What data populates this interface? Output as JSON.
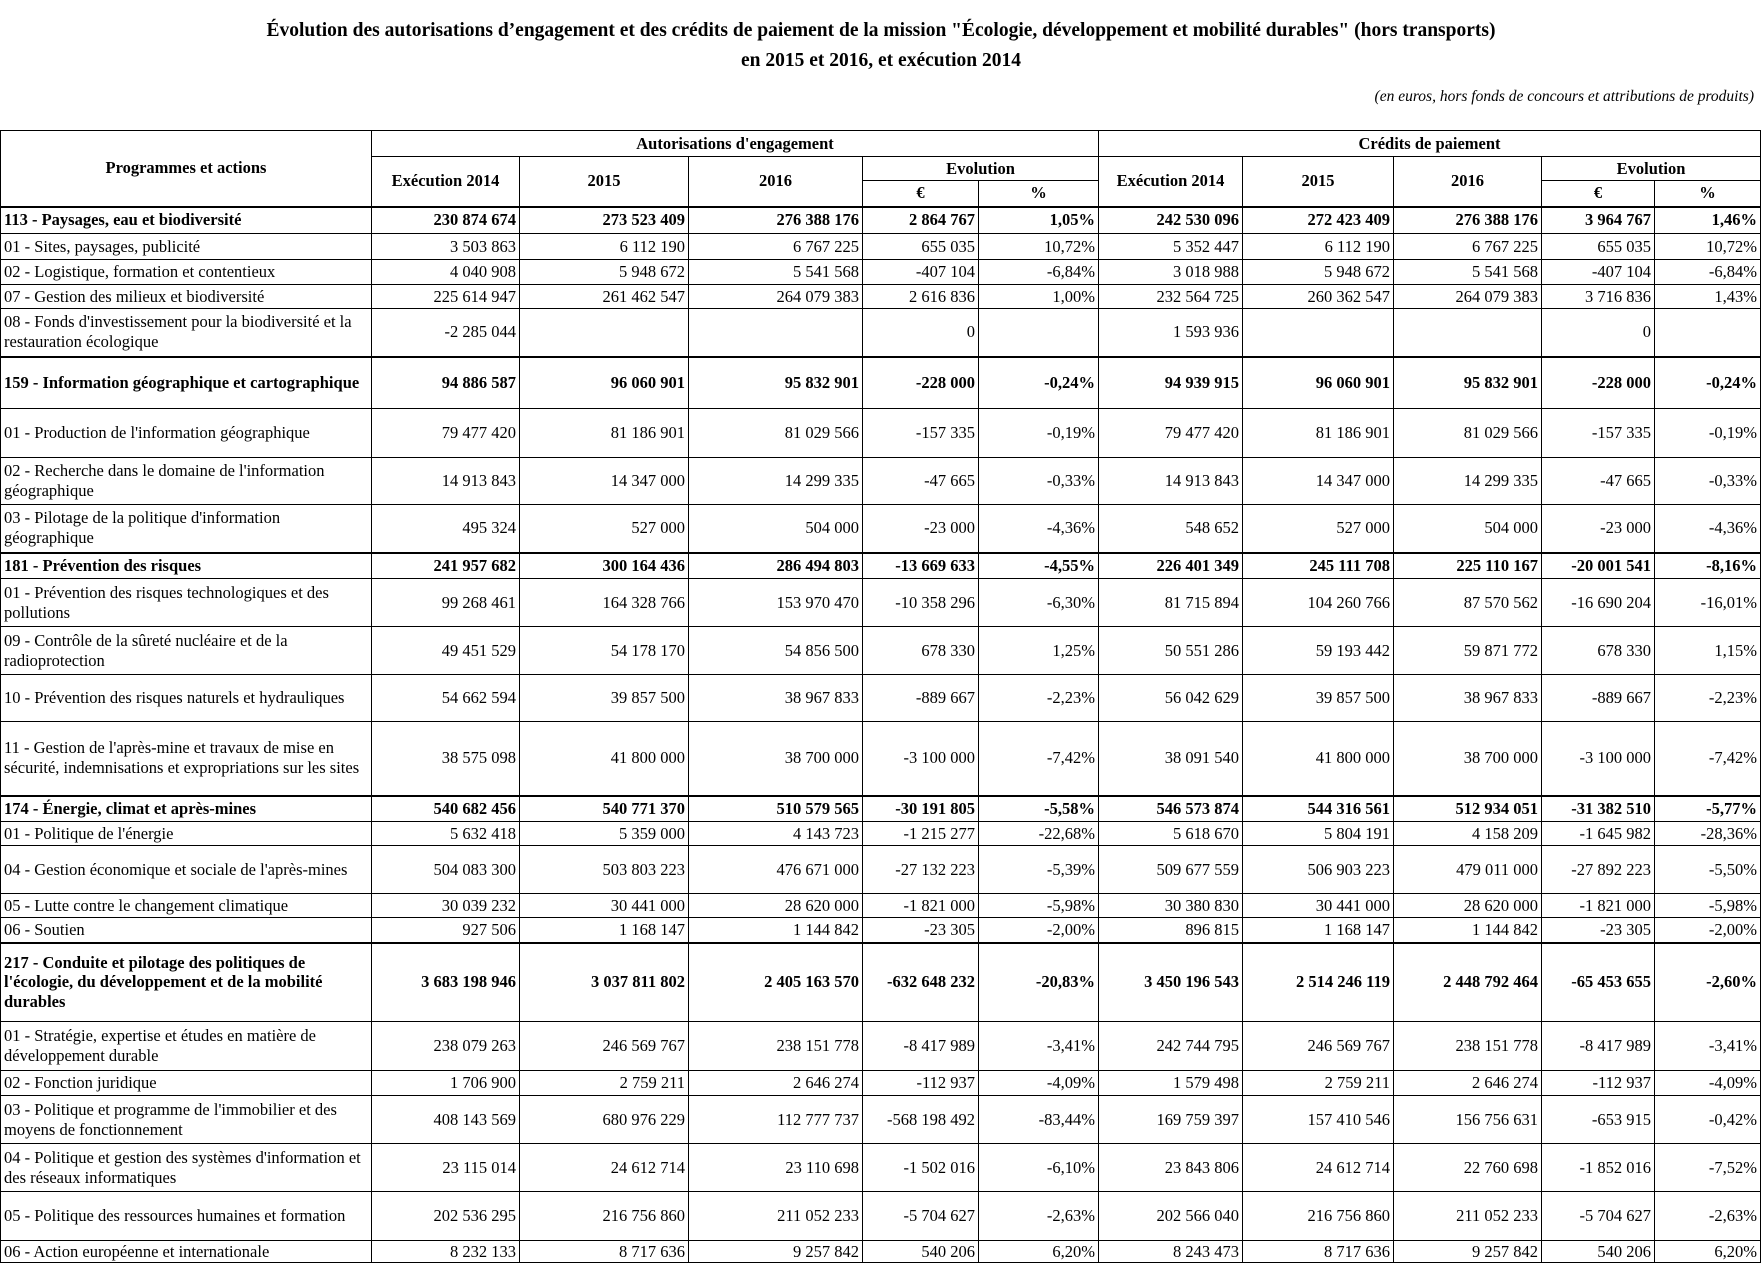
{
  "header": {
    "title_lines": [
      "Évolution des autorisations d’engagement et des crédits de paiement de la mission \"Écologie, développement et mobilité durables\" (hors transports)",
      "en 2015 et 2016, et exécution 2014"
    ],
    "note": "(en euros, hors fonds de concours et attributions de produits)"
  },
  "table": {
    "row_header": "Programmes et actions",
    "groups": [
      {
        "name": "Autorisations d'engagement",
        "columns": [
          "Exécution 2014",
          "2015",
          "2016"
        ],
        "evolution": "Evolution",
        "units": [
          "€",
          "%"
        ]
      },
      {
        "name": "Crédits de paiement",
        "columns": [
          "Exécution 2014",
          "2015",
          "2016"
        ],
        "evolution": "Evolution",
        "units": [
          "€",
          "%"
        ]
      }
    ],
    "rows": [
      {
        "label": "113 - Paysages, eau et biodiversité",
        "bold": true,
        "cells": [
          "230 874 674",
          "273 523 409",
          "276 388 176",
          "2 864 767",
          "1,05%",
          "242 530 096",
          "272 423 409",
          "276 388 176",
          "3 964 767",
          "1,46%"
        ]
      },
      {
        "label": "01 - Sites, paysages, publicité",
        "bold": false,
        "cells": [
          "3 503 863",
          "6 112 190",
          "6 767 225",
          "655 035",
          "10,72%",
          "5 352 447",
          "6 112 190",
          "6 767 225",
          "655 035",
          "10,72%"
        ]
      },
      {
        "label": "02 - Logistique, formation et contentieux",
        "bold": false,
        "cells": [
          "4 040 908",
          "5 948 672",
          "5 541 568",
          "-407 104",
          "-6,84%",
          "3 018 988",
          "5 948 672",
          "5 541 568",
          "-407 104",
          "-6,84%"
        ]
      },
      {
        "label": "07 - Gestion des milieux et biodiversité",
        "bold": false,
        "cells": [
          "225 614 947",
          "261 462 547",
          "264 079 383",
          "2 616 836",
          "1,00%",
          "232 564 725",
          "260 362 547",
          "264 079 383",
          "3 716 836",
          "1,43%"
        ]
      },
      {
        "label": "08 - Fonds d'investissement pour la biodiversité et la restauration écologique",
        "bold": false,
        "cells": [
          "-2 285 044",
          null,
          null,
          "0",
          null,
          "1 593 936",
          null,
          null,
          "0",
          null
        ]
      },
      {
        "label": "159 - Information géographique et cartographique",
        "bold": true,
        "cells": [
          "94 886 587",
          "96 060 901",
          "95 832 901",
          "-228 000",
          "-0,24%",
          "94 939 915",
          "96 060 901",
          "95 832 901",
          "-228 000",
          "-0,24%"
        ]
      },
      {
        "label": "01 - Production de l'information géographique",
        "bold": false,
        "cells": [
          "79 477 420",
          "81 186 901",
          "81 029 566",
          "-157 335",
          "-0,19%",
          "79 477 420",
          "81 186 901",
          "81 029 566",
          "-157 335",
          "-0,19%"
        ]
      },
      {
        "label": "02 - Recherche dans le domaine de l'information géographique",
        "bold": false,
        "cells": [
          "14 913 843",
          "14 347 000",
          "14 299 335",
          "-47 665",
          "-0,33%",
          "14 913 843",
          "14 347 000",
          "14 299 335",
          "-47 665",
          "-0,33%"
        ]
      },
      {
        "label": "03 - Pilotage de la politique d'information géographique",
        "bold": false,
        "cells": [
          "495 324",
          "527 000",
          "504 000",
          "-23 000",
          "-4,36%",
          "548 652",
          "527 000",
          "504 000",
          "-23 000",
          "-4,36%"
        ]
      },
      {
        "label": "181 - Prévention des risques",
        "bold": true,
        "cells": [
          "241 957 682",
          "300 164 436",
          "286 494 803",
          "-13 669 633",
          "-4,55%",
          "226 401 349",
          "245 111 708",
          "225 110 167",
          "-20 001 541",
          "-8,16%"
        ]
      },
      {
        "label": "01 - Prévention des risques technologiques et des pollutions",
        "bold": false,
        "cells": [
          "99 268 461",
          "164 328 766",
          "153 970 470",
          "-10 358 296",
          "-6,30%",
          "81 715 894",
          "104 260 766",
          "87 570 562",
          "-16 690 204",
          "-16,01%"
        ]
      },
      {
        "label": "09 - Contrôle de la sûreté nucléaire et de la radioprotection",
        "bold": false,
        "cells": [
          "49 451 529",
          "54 178 170",
          "54 856 500",
          "678 330",
          "1,25%",
          "50 551 286",
          "59 193 442",
          "59 871 772",
          "678 330",
          "1,15%"
        ]
      },
      {
        "label": "10 - Prévention des risques naturels et hydrauliques",
        "bold": false,
        "cells": [
          "54 662 594",
          "39 857 500",
          "38 967 833",
          "-889 667",
          "-2,23%",
          "56 042 629",
          "39 857 500",
          "38 967 833",
          "-889 667",
          "-2,23%"
        ]
      },
      {
        "label": "11 - Gestion de l'après-mine et travaux de mise en sécurité, indemnisations et expropriations sur les sites",
        "bold": false,
        "cells": [
          "38 575 098",
          "41 800 000",
          "38 700 000",
          "-3 100 000",
          "-7,42%",
          "38 091 540",
          "41 800 000",
          "38 700 000",
          "-3 100 000",
          "-7,42%"
        ]
      },
      {
        "label": "174 - Énergie, climat et après-mines",
        "bold": true,
        "cells": [
          "540 682 456",
          "540 771 370",
          "510 579 565",
          "-30 191 805",
          "-5,58%",
          "546 573 874",
          "544 316 561",
          "512 934 051",
          "-31 382 510",
          "-5,77%"
        ]
      },
      {
        "label": "01 - Politique de l'énergie",
        "bold": false,
        "cells": [
          "5 632 418",
          "5 359 000",
          "4 143 723",
          "-1 215 277",
          "-22,68%",
          "5 618 670",
          "5 804 191",
          "4 158 209",
          "-1 645 982",
          "-28,36%"
        ]
      },
      {
        "label": "04 - Gestion économique et sociale de l'après-mines",
        "bold": false,
        "cells": [
          "504 083 300",
          "503 803 223",
          "476 671 000",
          "-27 132 223",
          "-5,39%",
          "509 677 559",
          "506 903 223",
          "479 011 000",
          "-27 892 223",
          "-5,50%"
        ]
      },
      {
        "label": "05 - Lutte contre le changement climatique",
        "bold": false,
        "cells": [
          "30 039 232",
          "30 441 000",
          "28 620 000",
          "-1 821 000",
          "-5,98%",
          "30 380 830",
          "30 441 000",
          "28 620 000",
          "-1 821 000",
          "-5,98%"
        ]
      },
      {
        "label": "06 - Soutien",
        "bold": false,
        "cells": [
          "927 506",
          "1 168 147",
          "1 144 842",
          "-23 305",
          "-2,00%",
          "896 815",
          "1 168 147",
          "1 144 842",
          "-23 305",
          "-2,00%"
        ]
      },
      {
        "label": "217 - Conduite et pilotage des politiques de l'écologie, du développement et de la mobilité durables",
        "bold": true,
        "cells": [
          "3 683 198 946",
          "3 037 811 802",
          "2 405 163 570",
          "-632 648 232",
          "-20,83%",
          "3 450 196 543",
          "2 514 246 119",
          "2 448 792 464",
          "-65 453 655",
          "-2,60%"
        ]
      },
      {
        "label": "01 - Stratégie, expertise et études en matière de développement durable",
        "bold": false,
        "cells": [
          "238 079 263",
          "246 569 767",
          "238 151 778",
          "-8 417 989",
          "-3,41%",
          "242 744 795",
          "246 569 767",
          "238 151 778",
          "-8 417 989",
          "-3,41%"
        ]
      },
      {
        "label": "02 - Fonction juridique",
        "bold": false,
        "cells": [
          "1 706 900",
          "2 759 211",
          "2 646 274",
          "-112 937",
          "-4,09%",
          "1 579 498",
          "2 759 211",
          "2 646 274",
          "-112 937",
          "-4,09%"
        ]
      },
      {
        "label": "03 - Politique et programme de l'immobilier et des moyens de fonctionnement",
        "bold": false,
        "cells": [
          "408 143 569",
          "680 976 229",
          "112 777 737",
          "-568 198 492",
          "-83,44%",
          "169 759 397",
          "157 410 546",
          "156 756 631",
          "-653 915",
          "-0,42%"
        ]
      },
      {
        "label": "04 - Politique et gestion des systèmes d'information et des réseaux informatiques",
        "bold": false,
        "cells": [
          "23 115 014",
          "24 612 714",
          "23 110 698",
          "-1 502 016",
          "-6,10%",
          "23 843 806",
          "24 612 714",
          "22 760 698",
          "-1 852 016",
          "-7,52%"
        ]
      },
      {
        "label": "05 - Politique des ressources humaines et formation",
        "bold": false,
        "cells": [
          "202 536 295",
          "216 756 860",
          "211 052 233",
          "-5 704 627",
          "-2,63%",
          "202 566 040",
          "216 756 860",
          "211 052 233",
          "-5 704 627",
          "-2,63%"
        ]
      },
      {
        "label": "06 - Action européenne et internationale",
        "bold": false,
        "cells": [
          "8 232 133",
          "8 717 636",
          "9 257 842",
          "540 206",
          "6,20%",
          "8 243 473",
          "8 717 636",
          "9 257 842",
          "540 206",
          "6,20%"
        ]
      }
    ]
  }
}
